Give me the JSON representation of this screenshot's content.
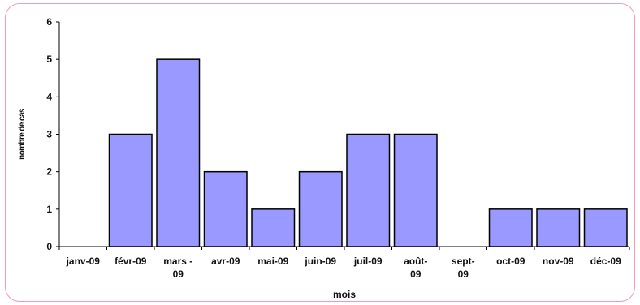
{
  "chart_data": {
    "type": "bar",
    "title": "",
    "xlabel": "mois",
    "ylabel": "nombre de cas",
    "categories": [
      [
        "janv-09"
      ],
      [
        "févr-09"
      ],
      [
        "mars -",
        "09"
      ],
      [
        "avr-09"
      ],
      [
        "mai-09"
      ],
      [
        "juin-09"
      ],
      [
        "juil-09"
      ],
      [
        "août-",
        "09"
      ],
      [
        "sept-",
        "09"
      ],
      [
        "oct-09"
      ],
      [
        "nov-09"
      ],
      [
        "déc-09"
      ]
    ],
    "values": [
      0,
      3,
      5,
      2,
      1,
      2,
      3,
      3,
      0,
      1,
      1,
      1
    ],
    "ylim": [
      0,
      6
    ],
    "yticks": [
      0,
      1,
      2,
      3,
      4,
      5,
      6
    ],
    "grid": false,
    "legend": "none",
    "bar_color": "#9999ff",
    "bar_edge_color": "#000000",
    "frame_color": "#f29ab8"
  }
}
